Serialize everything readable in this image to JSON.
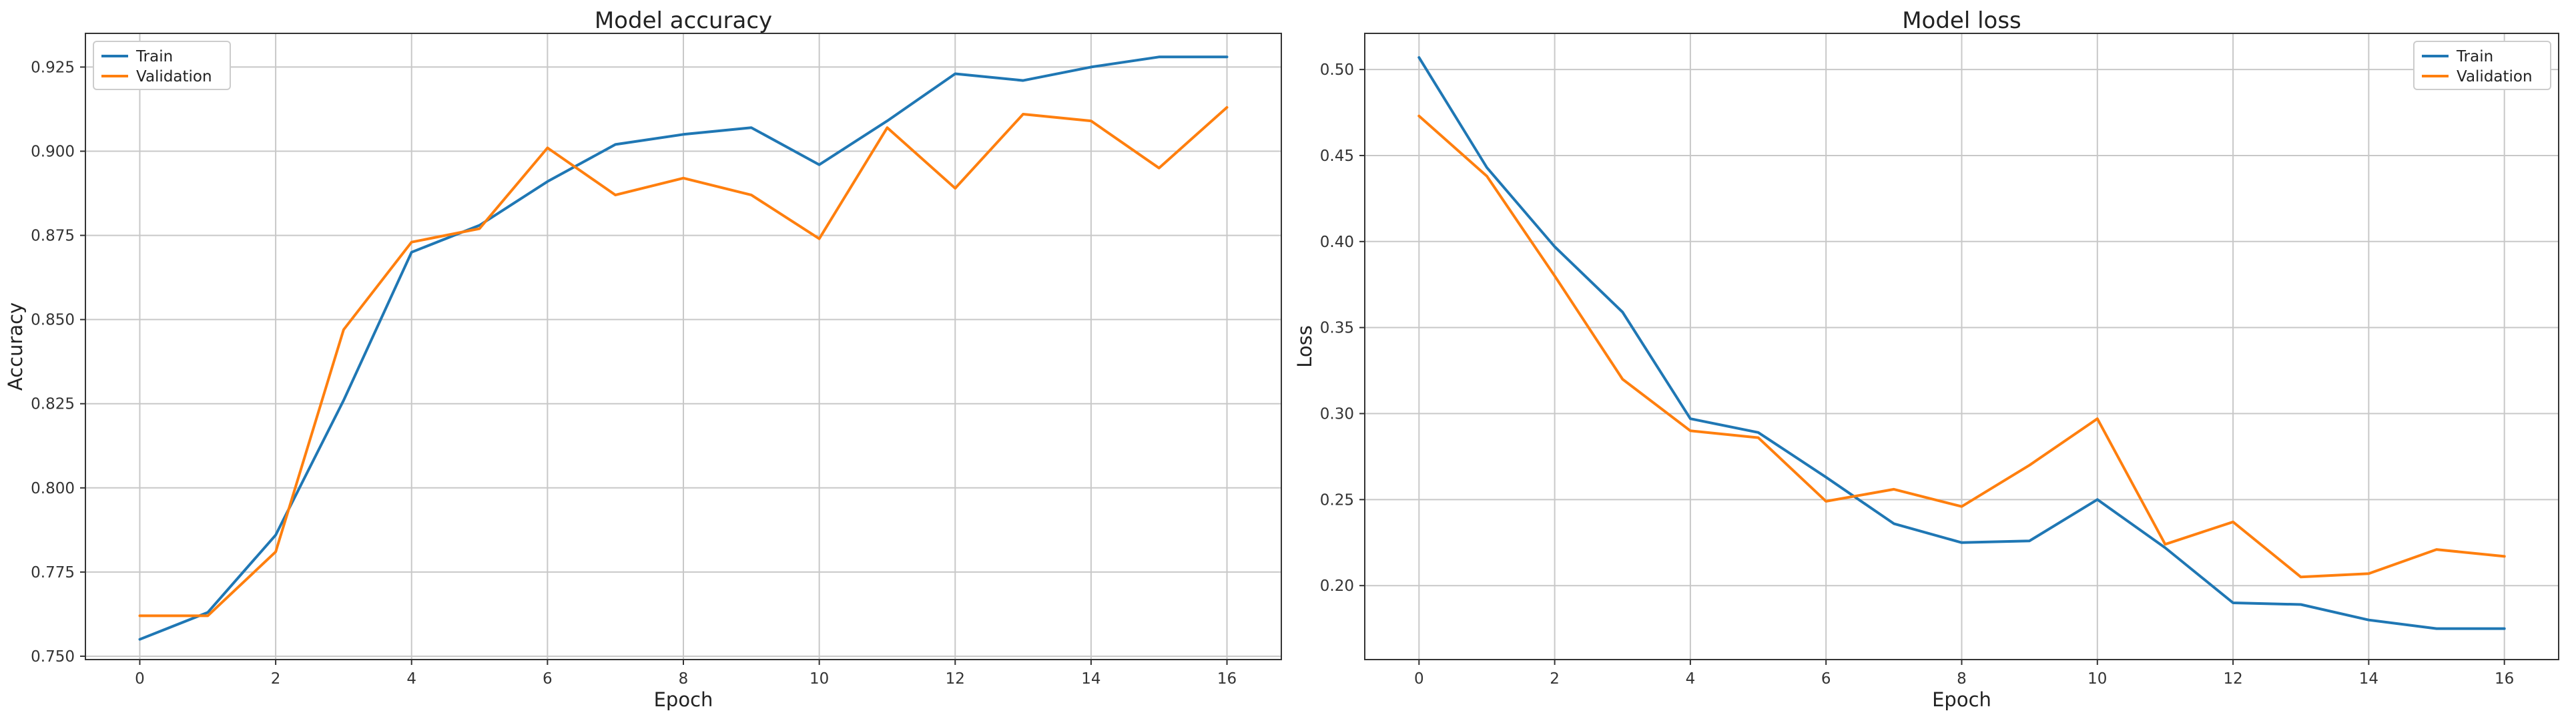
{
  "chart_data": [
    {
      "type": "line",
      "title": "Model accuracy",
      "xlabel": "Epoch",
      "ylabel": "Accuracy",
      "xlim": [
        -0.8,
        16.8
      ],
      "ylim": [
        0.749,
        0.935
      ],
      "xticks": [
        0,
        2,
        4,
        6,
        8,
        10,
        12,
        14,
        16
      ],
      "yticks": [
        0.75,
        0.775,
        0.8,
        0.825,
        0.85,
        0.875,
        0.9,
        0.925
      ],
      "ytick_labels": [
        "0.750",
        "0.775",
        "0.800",
        "0.825",
        "0.850",
        "0.875",
        "0.900",
        "0.925"
      ],
      "grid": true,
      "legend_position": "top-left",
      "x": [
        0,
        1,
        2,
        3,
        4,
        5,
        6,
        7,
        8,
        9,
        10,
        11,
        12,
        13,
        14,
        15,
        16
      ],
      "series": [
        {
          "name": "Train",
          "color": "#1f77b4",
          "values": [
            0.755,
            0.763,
            0.786,
            0.826,
            0.87,
            0.878,
            0.891,
            0.902,
            0.905,
            0.907,
            0.896,
            0.909,
            0.923,
            0.921,
            0.925,
            0.928,
            0.928
          ]
        },
        {
          "name": "Validation",
          "color": "#ff7f0e",
          "values": [
            0.762,
            0.762,
            0.781,
            0.847,
            0.873,
            0.877,
            0.901,
            0.887,
            0.892,
            0.887,
            0.874,
            0.907,
            0.889,
            0.911,
            0.909,
            0.895,
            0.913
          ]
        }
      ]
    },
    {
      "type": "line",
      "title": "Model loss",
      "xlabel": "Epoch",
      "ylabel": "Loss",
      "xlim": [
        -0.8,
        16.8
      ],
      "ylim": [
        0.157,
        0.521
      ],
      "xticks": [
        0,
        2,
        4,
        6,
        8,
        10,
        12,
        14,
        16
      ],
      "yticks": [
        0.2,
        0.25,
        0.3,
        0.35,
        0.4,
        0.45,
        0.5
      ],
      "ytick_labels": [
        "0.20",
        "0.25",
        "0.30",
        "0.35",
        "0.40",
        "0.45",
        "0.50"
      ],
      "grid": true,
      "legend_position": "top-right",
      "x": [
        0,
        1,
        2,
        3,
        4,
        5,
        6,
        7,
        8,
        9,
        10,
        11,
        12,
        13,
        14,
        15,
        16
      ],
      "series": [
        {
          "name": "Train",
          "color": "#1f77b4",
          "values": [
            0.507,
            0.443,
            0.397,
            0.359,
            0.297,
            0.289,
            0.263,
            0.236,
            0.225,
            0.226,
            0.25,
            0.222,
            0.19,
            0.189,
            0.18,
            0.175,
            0.175
          ]
        },
        {
          "name": "Validation",
          "color": "#ff7f0e",
          "values": [
            0.473,
            0.438,
            0.38,
            0.32,
            0.29,
            0.286,
            0.249,
            0.256,
            0.246,
            0.27,
            0.297,
            0.224,
            0.237,
            0.205,
            0.207,
            0.221,
            0.217
          ]
        }
      ]
    }
  ]
}
